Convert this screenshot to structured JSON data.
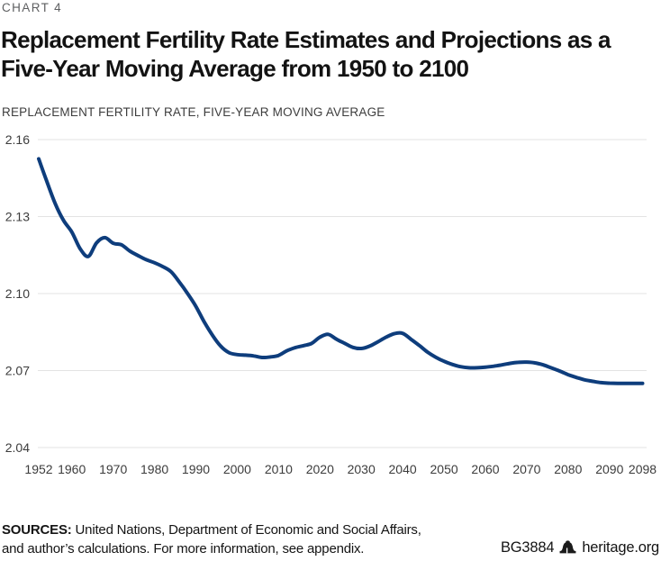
{
  "page": {
    "kicker": "CHART 4",
    "title_line1": "Replacement Fertility Rate Estimates and Projections as a",
    "title_line2": "Five-Year Moving Average from 1950 to 2100",
    "subtitle": "REPLACEMENT FERTILITY RATE, FIVE-YEAR MOVING AVERAGE"
  },
  "chart_data": {
    "type": "line",
    "title": "Replacement Fertility Rate Estimates and Projections as a Five-Year Moving Average from 1950 to 2100",
    "ylabel": "REPLACEMENT FERTILITY RATE, FIVE-YEAR MOVING AVERAGE",
    "xlabel": "",
    "grid": "horizontal-only",
    "legend": "none",
    "xlim": [
      1952,
      2098
    ],
    "ylim": [
      2.04,
      2.16
    ],
    "x_ticks": [
      1952,
      1960,
      1970,
      1980,
      1990,
      2000,
      2010,
      2020,
      2030,
      2040,
      2050,
      2060,
      2070,
      2080,
      2090,
      2098
    ],
    "y_tick_labels": [
      "2.16",
      "2.13",
      "2.10",
      "2.07",
      "2.04"
    ],
    "line_color": "#0e3d7c",
    "grid_color": "#e3e3e3",
    "series": [
      {
        "name": "Replacement fertility rate, five-year moving average",
        "x": [
          1952,
          1954,
          1956,
          1958,
          1960,
          1962,
          1964,
          1966,
          1968,
          1970,
          1972,
          1974,
          1976,
          1978,
          1980,
          1982,
          1984,
          1986,
          1988,
          1990,
          1992,
          1994,
          1996,
          1998,
          2000,
          2002,
          2004,
          2006,
          2008,
          2010,
          2012,
          2014,
          2016,
          2018,
          2020,
          2022,
          2024,
          2026,
          2028,
          2030,
          2032,
          2034,
          2036,
          2038,
          2040,
          2042,
          2044,
          2046,
          2048,
          2050,
          2052,
          2054,
          2056,
          2058,
          2060,
          2062,
          2064,
          2066,
          2068,
          2070,
          2072,
          2074,
          2076,
          2078,
          2080,
          2082,
          2084,
          2086,
          2088,
          2090,
          2092,
          2094,
          2096,
          2098
        ],
        "y": [
          2.1525,
          2.1435,
          2.135,
          2.1285,
          2.124,
          2.1175,
          2.1145,
          2.1198,
          2.1218,
          2.1196,
          2.119,
          2.1166,
          2.1148,
          2.1132,
          2.112,
          2.1105,
          2.1085,
          2.1045,
          2.1,
          2.095,
          2.089,
          2.0838,
          2.0795,
          2.077,
          2.0762,
          2.076,
          2.0757,
          2.0751,
          2.0753,
          2.0759,
          2.0777,
          2.0789,
          2.0797,
          2.0806,
          2.083,
          2.0841,
          2.0822,
          2.0806,
          2.079,
          2.0786,
          2.0795,
          2.0812,
          2.083,
          2.0844,
          2.0845,
          2.0822,
          2.0798,
          2.0772,
          2.0752,
          2.0736,
          2.0724,
          2.0715,
          2.0711,
          2.0711,
          2.0713,
          2.0717,
          2.0722,
          2.0728,
          2.0732,
          2.0733,
          2.073,
          2.0722,
          2.071,
          2.0698,
          2.0684,
          2.0673,
          2.0664,
          2.0658,
          2.0653,
          2.0651,
          2.065,
          2.065,
          2.065,
          2.065
        ]
      }
    ]
  },
  "footer": {
    "sources_label": "SOURCES:",
    "sources_line1_rest": " United Nations, Department of Economic and Social Affairs,",
    "sources_line2": "and author’s calculations. For more information, see appendix.",
    "report_id": "BG3884",
    "site": "heritage.org",
    "logo_icon": "heritage-bell-icon"
  }
}
